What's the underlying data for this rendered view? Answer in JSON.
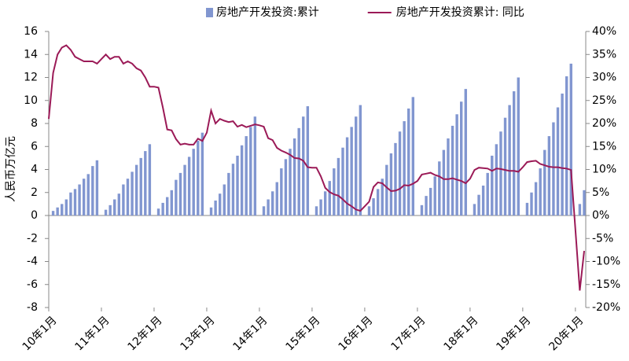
{
  "chart_data": {
    "type": "bar",
    "y_label": "人民币万亿元",
    "categories": [
      "10年1月",
      null,
      null,
      null,
      null,
      null,
      null,
      null,
      null,
      null,
      null,
      null,
      "11年1月",
      null,
      null,
      null,
      null,
      null,
      null,
      null,
      null,
      null,
      null,
      null,
      "12年1月",
      null,
      null,
      null,
      null,
      null,
      null,
      null,
      null,
      null,
      null,
      null,
      "13年1月",
      null,
      null,
      null,
      null,
      null,
      null,
      null,
      null,
      null,
      null,
      null,
      "14年1月",
      null,
      null,
      null,
      null,
      null,
      null,
      null,
      null,
      null,
      null,
      null,
      "15年1月",
      null,
      null,
      null,
      null,
      null,
      null,
      null,
      null,
      null,
      null,
      null,
      "16年1月",
      null,
      null,
      null,
      null,
      null,
      null,
      null,
      null,
      null,
      null,
      null,
      "17年1月",
      null,
      null,
      null,
      null,
      null,
      null,
      null,
      null,
      null,
      null,
      null,
      "18年1月",
      null,
      null,
      null,
      null,
      null,
      null,
      null,
      null,
      null,
      null,
      null,
      "19年1月",
      null,
      null,
      null,
      null,
      null,
      null,
      null,
      null,
      null,
      null,
      null,
      "20年1月",
      null,
      null
    ],
    "series": [
      {
        "name": "房地产开发投资:累计",
        "type": "bar",
        "color": "#8196d0",
        "values": [
          null,
          0.4,
          0.7,
          1.0,
          1.4,
          2.0,
          2.3,
          2.7,
          3.2,
          3.6,
          4.3,
          4.8,
          null,
          0.5,
          0.9,
          1.4,
          1.9,
          2.7,
          3.2,
          3.8,
          4.4,
          5.0,
          5.6,
          6.2,
          null,
          0.6,
          1.1,
          1.6,
          2.2,
          3.1,
          3.7,
          4.4,
          5.1,
          5.8,
          6.5,
          7.2,
          null,
          0.7,
          1.3,
          1.9,
          2.7,
          3.7,
          4.5,
          5.2,
          6.1,
          6.9,
          7.7,
          8.6,
          null,
          0.8,
          1.4,
          2.1,
          2.9,
          4.1,
          4.9,
          5.8,
          6.7,
          7.6,
          8.6,
          9.5,
          null,
          0.8,
          1.4,
          2.1,
          3.0,
          4.1,
          5.0,
          5.9,
          6.8,
          7.7,
          8.6,
          9.6,
          null,
          0.8,
          1.5,
          2.3,
          3.2,
          4.4,
          5.4,
          6.3,
          7.3,
          8.2,
          9.3,
          10.3,
          null,
          0.9,
          1.7,
          2.4,
          3.4,
          4.7,
          5.7,
          6.7,
          7.8,
          8.8,
          9.9,
          11.0,
          null,
          1.0,
          1.8,
          2.6,
          3.7,
          5.2,
          6.2,
          7.3,
          8.5,
          9.6,
          10.8,
          12.0,
          null,
          1.1,
          2.0,
          2.9,
          4.1,
          5.7,
          6.9,
          8.1,
          9.4,
          10.6,
          12.1,
          13.2,
          null,
          1.0,
          2.2
        ]
      },
      {
        "name": "房地产开发投资累计: 同比",
        "type": "line",
        "axis": "y2",
        "color": "#9b1a57",
        "values": [
          21,
          31,
          35,
          36.5,
          37,
          36,
          34.5,
          34,
          33.5,
          33.5,
          33.5,
          33,
          34,
          35,
          34,
          34.5,
          34.5,
          33,
          33.5,
          33,
          32,
          31.5,
          30,
          28,
          28,
          27.8,
          23.5,
          18.7,
          18.5,
          16.6,
          15.4,
          15.6,
          15.4,
          15.4,
          16.7,
          16.2,
          18,
          22.8,
          20,
          21,
          20.6,
          20.3,
          20.5,
          19.3,
          19.7,
          19.2,
          19.5,
          19.8,
          19.6,
          19.3,
          16.8,
          16.4,
          14.7,
          14.1,
          13.7,
          13.2,
          12.5,
          12.4,
          11.9,
          10.5,
          10.4,
          10.4,
          8.5,
          6,
          5.1,
          4.6,
          4.3,
          3.5,
          2.6,
          2,
          1.3,
          1,
          2,
          3,
          6.2,
          7.2,
          7,
          6.1,
          5.3,
          5.4,
          5.8,
          6.6,
          6.5,
          6.9,
          7.5,
          8.9,
          9.1,
          9.3,
          8.8,
          8.5,
          7.9,
          7.9,
          8.1,
          7.8,
          7.5,
          7,
          8,
          9.9,
          10.4,
          10.3,
          10.2,
          9.7,
          10.2,
          10.1,
          9.9,
          9.7,
          9.7,
          9.5,
          10.5,
          11.6,
          11.8,
          11.9,
          11.2,
          10.9,
          10.6,
          10.5,
          10.5,
          10.3,
          10.2,
          9.9,
          -3,
          -16.3,
          -7.7
        ]
      }
    ],
    "ylim": [
      -8,
      16
    ],
    "yticks": [
      -8,
      -6,
      -4,
      -2,
      0,
      2,
      4,
      6,
      8,
      10,
      12,
      14,
      16
    ],
    "y2lim": [
      -20,
      40
    ],
    "y2ticks": [
      {
        "value": -20,
        "label": "-20%"
      },
      {
        "value": -15,
        "label": "-15%"
      },
      {
        "value": -10,
        "label": "-10%"
      },
      {
        "value": -5,
        "label": "-5%"
      },
      {
        "value": 0,
        "label": "0%"
      },
      {
        "value": 5,
        "label": "5%"
      },
      {
        "value": 10,
        "label": "10%"
      },
      {
        "value": 15,
        "label": "15%"
      },
      {
        "value": 20,
        "label": "20%"
      },
      {
        "value": 25,
        "label": "25%"
      },
      {
        "value": 30,
        "label": "30%"
      },
      {
        "value": 35,
        "label": "35%"
      },
      {
        "value": 40,
        "label": "40%"
      }
    ],
    "legend": "top"
  }
}
